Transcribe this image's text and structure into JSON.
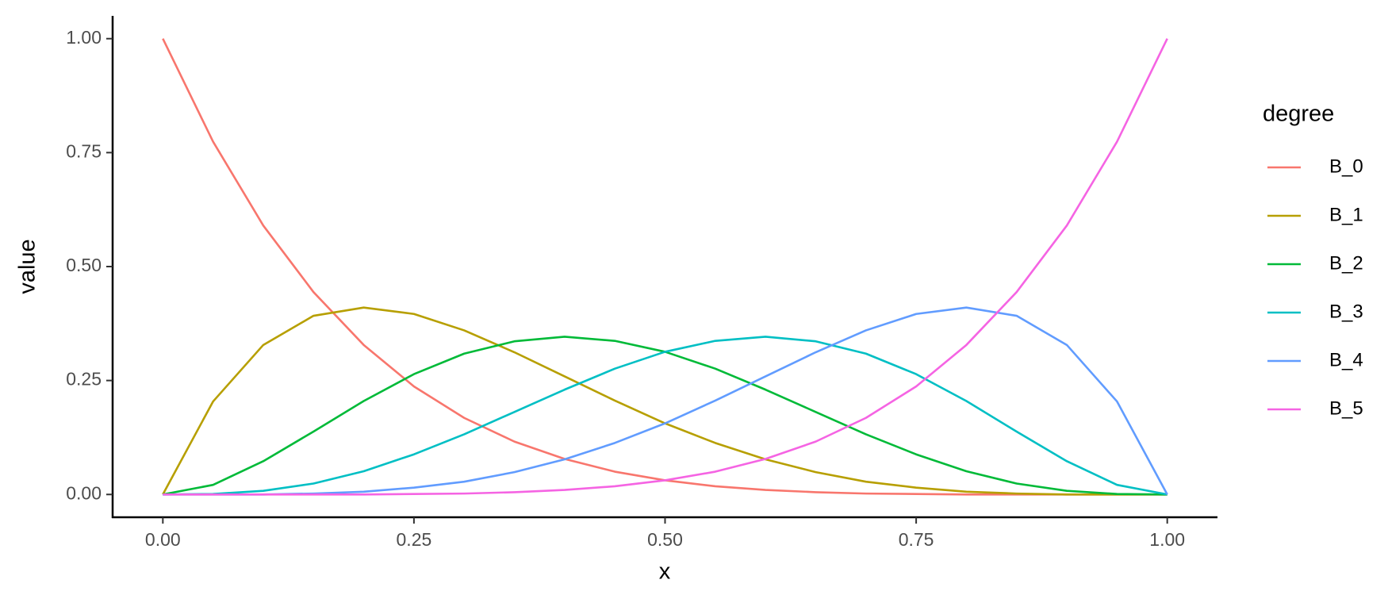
{
  "chart_data": {
    "type": "line",
    "x_label": "x",
    "y_label": "value",
    "legend_title": "degree",
    "legend": "right",
    "grid": false,
    "x": [
      0,
      0.05,
      0.1,
      0.15,
      0.2,
      0.25,
      0.3,
      0.35,
      0.4,
      0.45,
      0.5,
      0.55,
      0.6,
      0.65,
      0.7,
      0.75,
      0.8,
      0.85,
      0.9,
      0.95,
      1
    ],
    "series": [
      {
        "name": "B_0",
        "color": "#F8766D",
        "values": [
          1,
          0.774,
          0.59,
          0.444,
          0.328,
          0.237,
          0.168,
          0.116,
          0.078,
          0.05,
          0.031,
          0.018,
          0.01,
          0.005,
          0.002,
          0.001,
          0,
          0,
          0,
          0,
          0
        ]
      },
      {
        "name": "B_1",
        "color": "#B79F00",
        "values": [
          0,
          0.204,
          0.328,
          0.392,
          0.41,
          0.396,
          0.36,
          0.312,
          0.259,
          0.206,
          0.156,
          0.113,
          0.077,
          0.049,
          0.028,
          0.015,
          0.006,
          0.002,
          0,
          0,
          0
        ]
      },
      {
        "name": "B_2",
        "color": "#00BA38",
        "values": [
          0,
          0.021,
          0.073,
          0.138,
          0.205,
          0.264,
          0.309,
          0.336,
          0.346,
          0.337,
          0.313,
          0.276,
          0.23,
          0.181,
          0.132,
          0.088,
          0.051,
          0.024,
          0.008,
          0.001,
          0
        ]
      },
      {
        "name": "B_3",
        "color": "#00BFC4",
        "values": [
          0,
          0.001,
          0.008,
          0.024,
          0.051,
          0.088,
          0.132,
          0.181,
          0.23,
          0.276,
          0.313,
          0.337,
          0.346,
          0.336,
          0.309,
          0.264,
          0.205,
          0.138,
          0.073,
          0.021,
          0
        ]
      },
      {
        "name": "B_4",
        "color": "#619CFF",
        "values": [
          0,
          0,
          0,
          0.002,
          0.006,
          0.015,
          0.028,
          0.049,
          0.077,
          0.113,
          0.156,
          0.206,
          0.259,
          0.312,
          0.36,
          0.396,
          0.41,
          0.392,
          0.328,
          0.204,
          0
        ]
      },
      {
        "name": "B_5",
        "color": "#F564E3",
        "values": [
          0,
          0,
          0,
          0,
          0,
          0.001,
          0.002,
          0.005,
          0.01,
          0.018,
          0.031,
          0.05,
          0.078,
          0.116,
          0.168,
          0.237,
          0.328,
          0.444,
          0.59,
          0.774,
          1
        ]
      }
    ],
    "xlim": [
      -0.05,
      1.05
    ],
    "ylim": [
      -0.05,
      1.05
    ],
    "xticks": [
      {
        "value": 0,
        "label": "0.00"
      },
      {
        "value": 0.25,
        "label": "0.25"
      },
      {
        "value": 0.5,
        "label": "0.50"
      },
      {
        "value": 0.75,
        "label": "0.75"
      },
      {
        "value": 1,
        "label": "1.00"
      }
    ],
    "yticks": [
      {
        "value": 0,
        "label": "0.00"
      },
      {
        "value": 0.25,
        "label": "0.25"
      },
      {
        "value": 0.5,
        "label": "0.50"
      },
      {
        "value": 0.75,
        "label": "0.75"
      },
      {
        "value": 1,
        "label": "1.00"
      }
    ]
  }
}
